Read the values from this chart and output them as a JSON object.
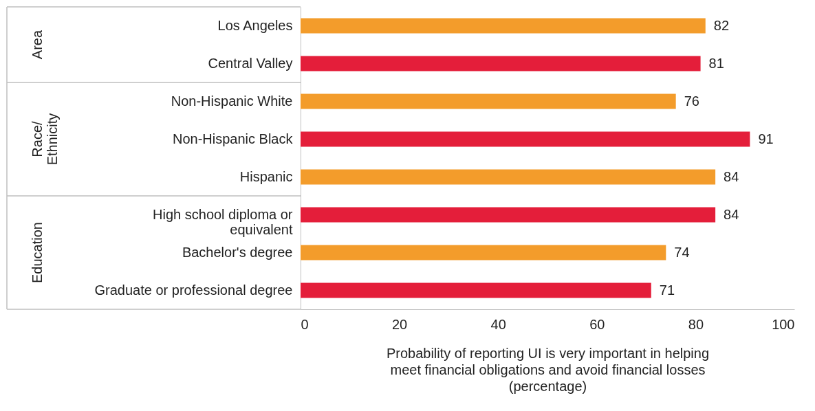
{
  "chart_data": {
    "type": "bar",
    "orientation": "horizontal",
    "categories": [
      "Los Angeles",
      "Central Valley",
      "Non-Hispanic White",
      "Non-Hispanic Black",
      "Hispanic",
      "High school diploma or equivalent",
      "Bachelor's degree",
      "Graduate or professional degree"
    ],
    "values": [
      82,
      81,
      76,
      91,
      84,
      84,
      74,
      71
    ],
    "colors": [
      "#f39c2b",
      "#e41e3a",
      "#f39c2b",
      "#e41e3a",
      "#f39c2b",
      "#e41e3a",
      "#f39c2b",
      "#e41e3a"
    ],
    "xlim": [
      0,
      100
    ],
    "xticks": [
      0,
      20,
      40,
      60,
      80,
      100
    ],
    "xlabel": "Probability of reporting UI is very important in helping meet financial obligations and avoid financial losses (percentage)",
    "annotations": [
      "Area",
      "Race/Ethnicity",
      "Education"
    ],
    "data_labels": true,
    "grid": false
  }
}
